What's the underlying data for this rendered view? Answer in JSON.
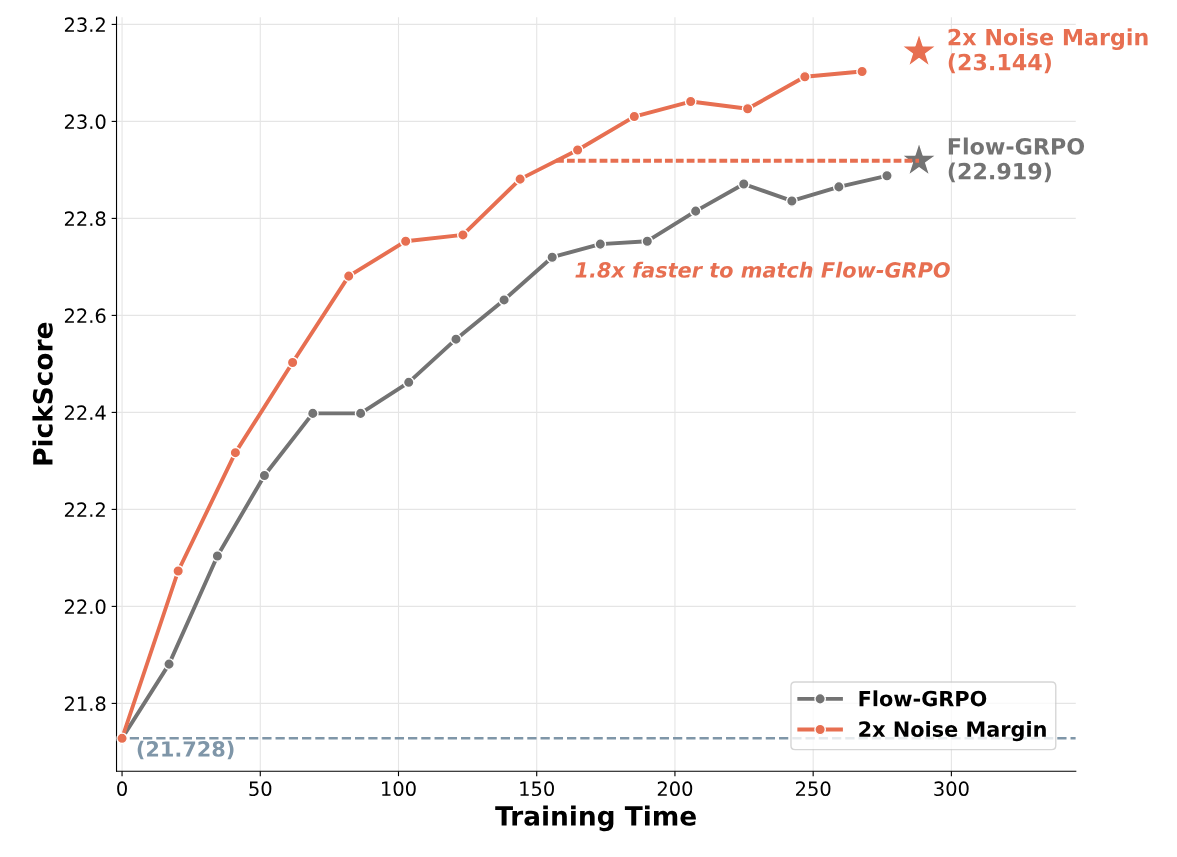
{
  "chart_data": {
    "type": "line",
    "xlabel": "Training Time",
    "ylabel": "PickScore",
    "xlim": [
      -2,
      345
    ],
    "ylim": [
      21.66,
      23.215
    ],
    "xticks": [
      0,
      50,
      100,
      150,
      200,
      250,
      300
    ],
    "yticks": [
      21.8,
      {
        "value": 22,
        "label": "22.0"
      },
      22.2,
      22.4,
      22.6,
      22.8,
      {
        "value": 23,
        "label": "23.0"
      },
      23.2
    ],
    "grid": true,
    "legend": "bottom right",
    "marker": "circle",
    "line_style": "solid",
    "series": [
      {
        "name": "Flow-GRPO",
        "color": "#737373",
        "x": [
          0,
          17,
          34.5,
          51.5,
          69,
          86.3,
          103.7,
          120.8,
          138.2,
          155.6,
          173,
          190,
          207.5,
          224.9,
          242.3,
          259.3,
          276.7
        ],
        "values": [
          21.728,
          21.881,
          22.104,
          22.27,
          22.398,
          22.398,
          22.462,
          22.551,
          22.632,
          22.72,
          22.747,
          22.753,
          22.815,
          22.871,
          22.836,
          22.865,
          22.888
        ]
      },
      {
        "name": "2x Noise Margin",
        "color": "#e76f51",
        "x": [
          0,
          20.3,
          41,
          61.7,
          82,
          102.6,
          123.3,
          144,
          164.8,
          185.3,
          205.7,
          226.3,
          247,
          267.7
        ],
        "values": [
          21.728,
          22.073,
          22.317,
          22.503,
          22.681,
          22.753,
          22.766,
          22.881,
          22.941,
          23.01,
          23.041,
          23.026,
          23.092,
          23.103
        ]
      },
      {
        "type": "scatter",
        "marker": "star",
        "color": "#737373",
        "x": [
          288.3
        ],
        "values": [
          22.919
        ]
      },
      {
        "type": "scatter",
        "marker": "star",
        "color": "#e76f51",
        "x": [
          288.3
        ],
        "values": [
          23.144
        ]
      },
      {
        "type": "line",
        "marker": "none",
        "line_style": "dashed",
        "color": "#e76f51",
        "x": [
          157,
          288.3
        ],
        "values": [
          22.919,
          22.919
        ]
      }
    ],
    "ref_lines": [
      {
        "axis": "y",
        "value": 21.728,
        "label": "(21.728)",
        "color": "#7f96a8",
        "line_style": "dashed"
      }
    ],
    "annotations": [
      "2x Noise Margin\n(23.144)",
      "Flow-GRPO\n(22.919)",
      "1.8x faster to match Flow-GRPO"
    ]
  }
}
